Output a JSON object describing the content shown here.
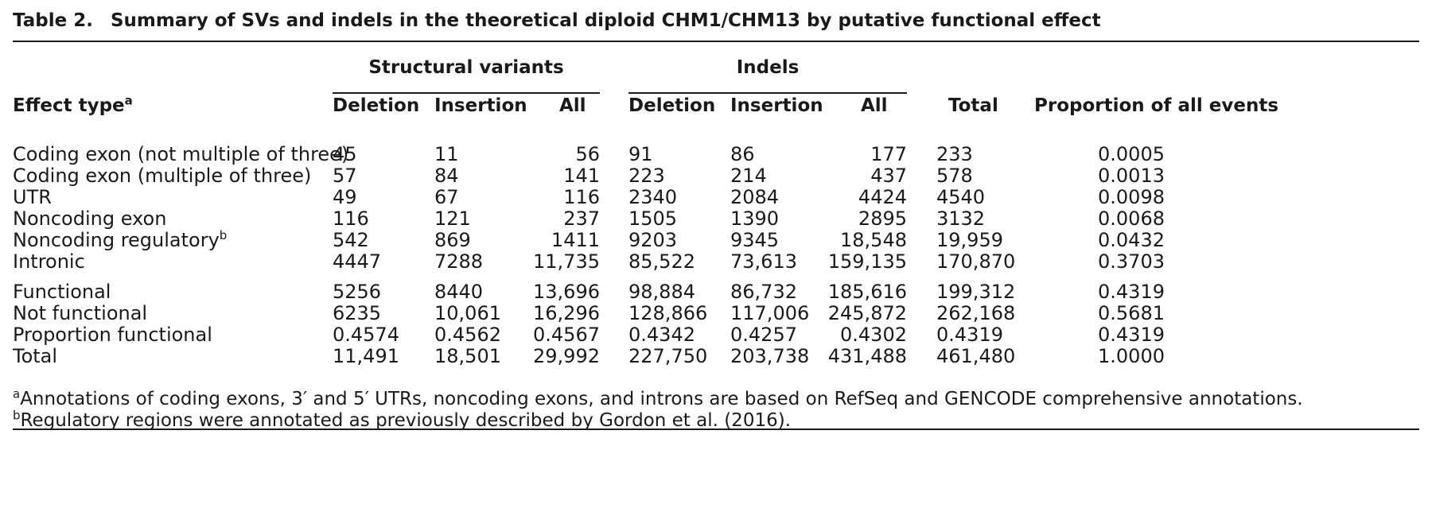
{
  "caption": {
    "label": "Table 2.",
    "text": "Summary of SVs and indels in the theoretical diploid CHM1/CHM13 by putative functional effect"
  },
  "groups": {
    "sv": "Structural variants",
    "indel": "Indels"
  },
  "columns": {
    "effect_type": "Effect type",
    "effect_type_sup": "a",
    "sv_deletion": "Deletion",
    "sv_insertion": "Insertion",
    "sv_all": "All",
    "indel_deletion": "Deletion",
    "indel_insertion": "Insertion",
    "indel_all": "All",
    "total": "Total",
    "proportion": "Proportion of all events"
  },
  "rows": [
    {
      "label": "Coding exon (not multiple of three)",
      "sup": "",
      "values": [
        "45",
        "11",
        "56",
        "91",
        "86",
        "177",
        "233",
        "0.0005"
      ]
    },
    {
      "label": "Coding exon (multiple of three)",
      "sup": "",
      "values": [
        "57",
        "84",
        "141",
        "223",
        "214",
        "437",
        "578",
        "0.0013"
      ]
    },
    {
      "label": "UTR",
      "sup": "",
      "values": [
        "49",
        "67",
        "116",
        "2340",
        "2084",
        "4424",
        "4540",
        "0.0098"
      ]
    },
    {
      "label": "Noncoding exon",
      "sup": "",
      "values": [
        "116",
        "121",
        "237",
        "1505",
        "1390",
        "2895",
        "3132",
        "0.0068"
      ]
    },
    {
      "label": "Noncoding regulatory",
      "sup": "b",
      "values": [
        "542",
        "869",
        "1411",
        "9203",
        "9345",
        "18,548",
        "19,959",
        "0.0432"
      ]
    },
    {
      "label": "Intronic",
      "sup": "",
      "values": [
        "4447",
        "7288",
        "11,735",
        "85,522",
        "73,613",
        "159,135",
        "170,870",
        "0.3703"
      ]
    },
    {
      "label": "Functional",
      "sup": "",
      "values": [
        "5256",
        "8440",
        "13,696",
        "98,884",
        "86,732",
        "185,616",
        "199,312",
        "0.4319"
      ]
    },
    {
      "label": "Not functional",
      "sup": "",
      "values": [
        "6235",
        "10,061",
        "16,296",
        "128,866",
        "117,006",
        "245,872",
        "262,168",
        "0.5681"
      ]
    },
    {
      "label": "Proportion functional",
      "sup": "",
      "values": [
        "0.4574",
        "0.4562",
        "0.4567",
        "0.4342",
        "0.4257",
        "0.4302",
        "0.4319",
        "0.4319"
      ]
    },
    {
      "label": "Total",
      "sup": "",
      "values": [
        "11,491",
        "18,501",
        "29,992",
        "227,750",
        "203,738",
        "431,488",
        "461,480",
        "1.0000"
      ]
    }
  ],
  "footnotes": [
    {
      "mark": "a",
      "text": "Annotations of coding exons, 3′ and 5′ UTRs, noncoding exons, and introns are based on RefSeq and GENCODE comprehensive annotations."
    },
    {
      "mark": "b",
      "text": "Regulatory regions were annotated as previously described by Gordon et al. (2016)."
    }
  ]
}
